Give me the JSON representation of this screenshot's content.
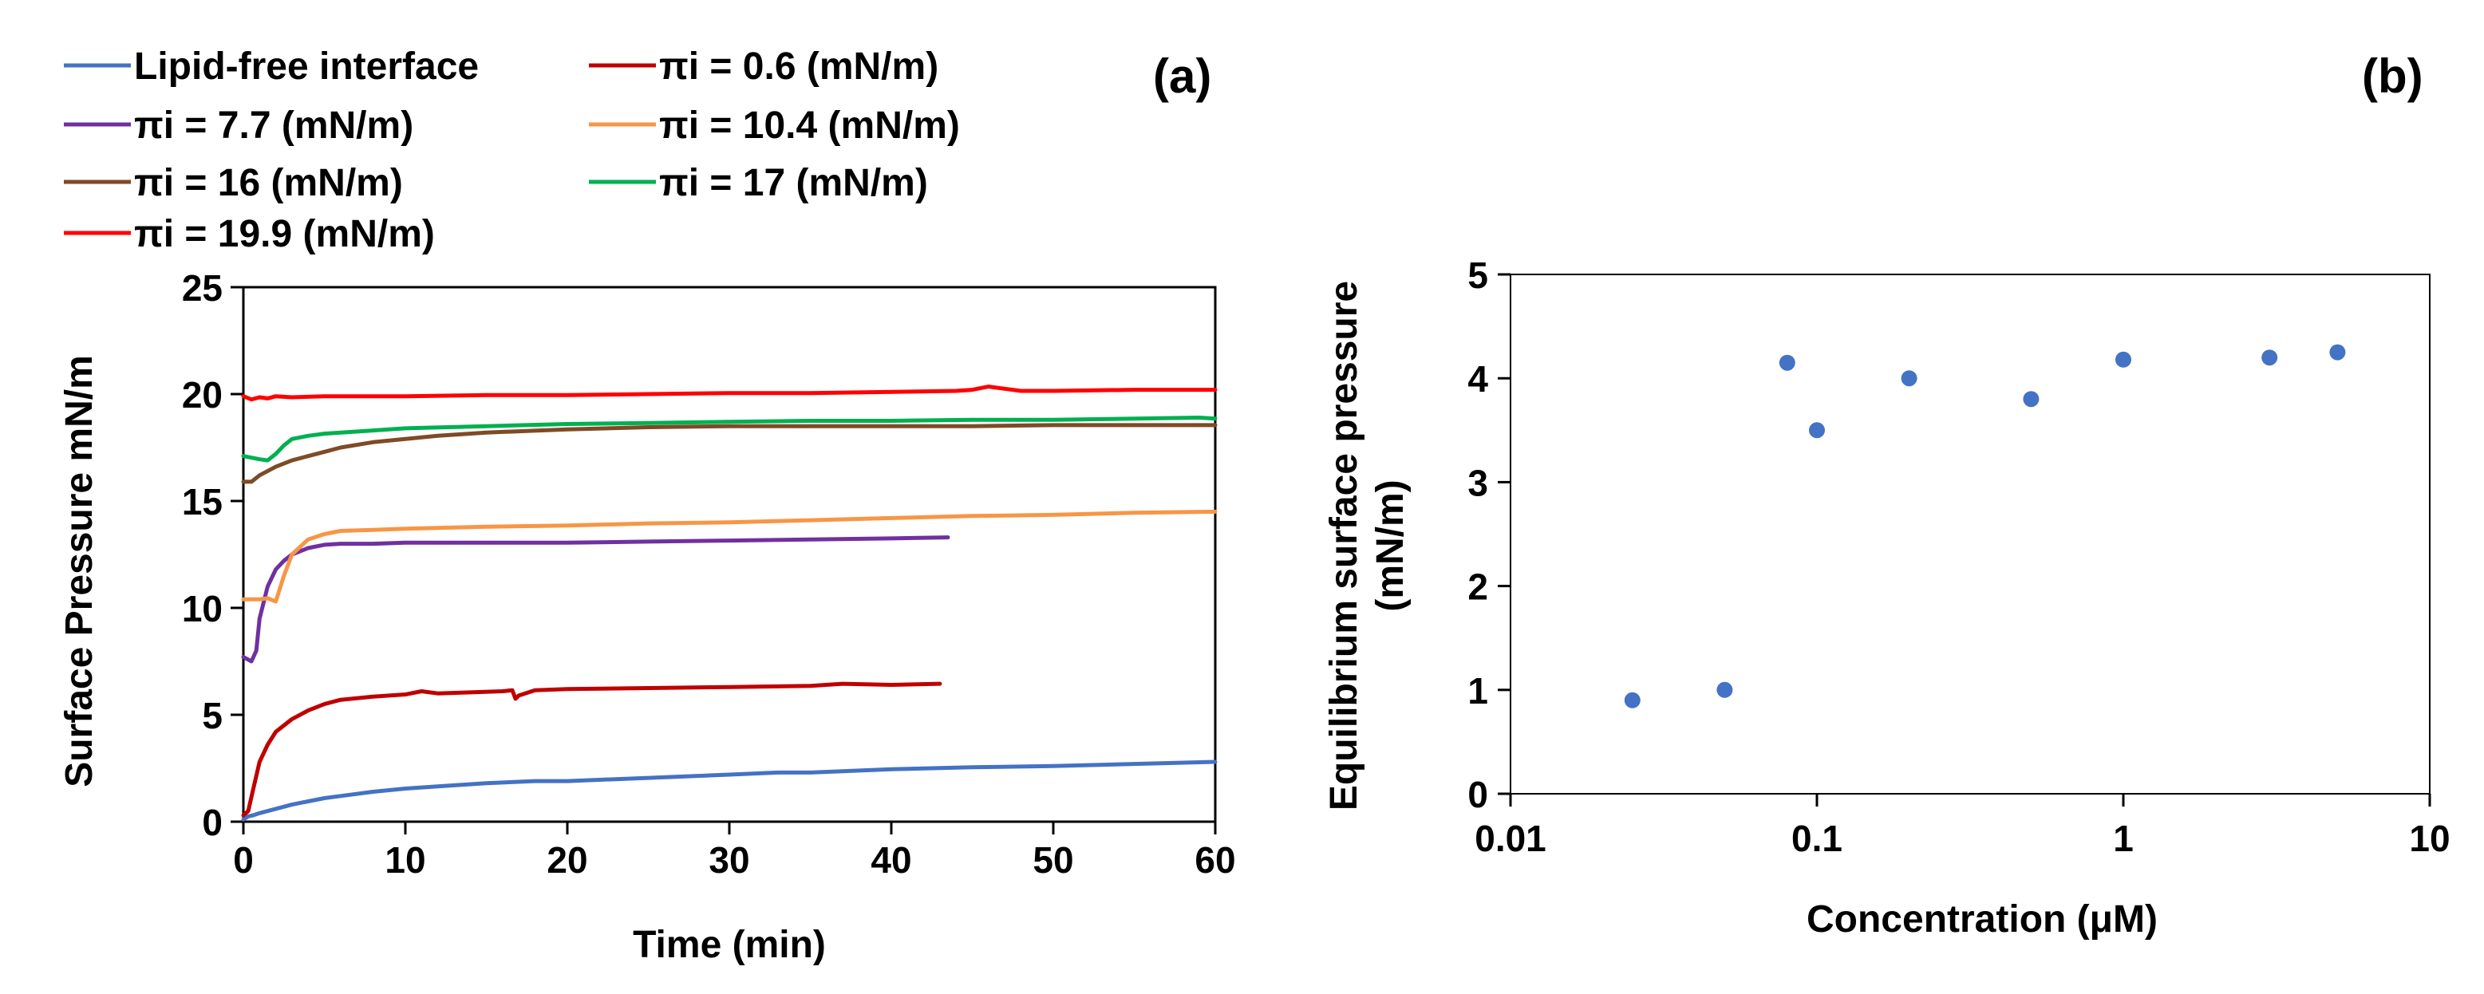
{
  "panels": {
    "a": {
      "label": "(a)"
    },
    "b": {
      "label": "(b)"
    }
  },
  "chart_data": [
    {
      "type": "line",
      "panel": "a",
      "xlabel": "Time (min)",
      "ylabel": "Surface Pressure mN/m",
      "xlim": [
        0,
        60
      ],
      "ylim": [
        0,
        25
      ],
      "xticks": [
        0,
        10,
        20,
        30,
        40,
        50,
        60
      ],
      "yticks": [
        0,
        5,
        10,
        15,
        20,
        25
      ],
      "legend_position": "top",
      "series": [
        {
          "name": "Lipid-free interface",
          "color": "#4472C4",
          "x": [
            0,
            0.3,
            0.6,
            1,
            2,
            3,
            4,
            5,
            6,
            8,
            10,
            12,
            15,
            18,
            20,
            25,
            30,
            33,
            35,
            40,
            45,
            50,
            55,
            60
          ],
          "y": [
            0.1,
            0.25,
            0.3,
            0.4,
            0.6,
            0.8,
            0.95,
            1.1,
            1.2,
            1.4,
            1.55,
            1.65,
            1.8,
            1.9,
            1.9,
            2.05,
            2.2,
            2.3,
            2.3,
            2.45,
            2.55,
            2.6,
            2.7,
            2.8
          ]
        },
        {
          "name": "πi = 0.6 (mN/m)",
          "color": "#C00000",
          "x": [
            0,
            0.3,
            0.6,
            1,
            1.5,
            2,
            3,
            4,
            5,
            6,
            8,
            10,
            11,
            12,
            14,
            16,
            16.6,
            16.8,
            17,
            18,
            20,
            25,
            30,
            35,
            37,
            40,
            43
          ],
          "y": [
            0.3,
            0.5,
            1.5,
            2.8,
            3.6,
            4.2,
            4.8,
            5.2,
            5.5,
            5.7,
            5.85,
            5.95,
            6.1,
            6.0,
            6.05,
            6.1,
            6.15,
            5.75,
            5.9,
            6.15,
            6.2,
            6.25,
            6.3,
            6.35,
            6.45,
            6.4,
            6.45
          ]
        },
        {
          "name": "πi = 7.7 (mN/m)",
          "color": "#7030A0",
          "x": [
            0,
            0.5,
            0.8,
            1,
            1.5,
            2,
            2.5,
            3,
            4,
            5,
            6,
            8,
            10,
            15,
            20,
            25,
            30,
            35,
            40,
            43.5
          ],
          "y": [
            7.7,
            7.5,
            8.0,
            9.5,
            11.0,
            11.8,
            12.2,
            12.5,
            12.8,
            12.95,
            13.0,
            13.0,
            13.05,
            13.05,
            13.05,
            13.1,
            13.15,
            13.2,
            13.25,
            13.3
          ]
        },
        {
          "name": "πi = 10.4 (mN/m)",
          "color": "#F79646",
          "x": [
            0,
            1,
            1.5,
            2,
            2.5,
            3,
            4,
            5,
            6,
            8,
            10,
            15,
            20,
            25,
            30,
            35,
            40,
            45,
            50,
            55,
            60
          ],
          "y": [
            10.4,
            10.4,
            10.45,
            10.3,
            11.5,
            12.5,
            13.2,
            13.45,
            13.6,
            13.65,
            13.7,
            13.8,
            13.85,
            13.95,
            14.0,
            14.1,
            14.2,
            14.3,
            14.35,
            14.45,
            14.5
          ]
        },
        {
          "name": "πi = 16 (mN/m)",
          "color": "#7F4A26",
          "x": [
            0,
            0.5,
            1,
            2,
            3,
            4,
            5,
            6,
            8,
            10,
            12,
            15,
            20,
            25,
            30,
            35,
            40,
            45,
            50,
            55,
            60
          ],
          "y": [
            15.9,
            15.9,
            16.2,
            16.6,
            16.9,
            17.1,
            17.3,
            17.5,
            17.75,
            17.9,
            18.05,
            18.2,
            18.35,
            18.45,
            18.5,
            18.5,
            18.5,
            18.5,
            18.55,
            18.55,
            18.55
          ]
        },
        {
          "name": "πi = 17 (mN/m)",
          "color": "#00B050",
          "x": [
            0,
            1,
            1.5,
            2,
            2.5,
            3,
            4,
            5,
            8,
            10,
            15,
            20,
            25,
            30,
            35,
            40,
            45,
            50,
            55,
            59,
            60
          ],
          "y": [
            17.1,
            16.95,
            16.9,
            17.2,
            17.6,
            17.9,
            18.05,
            18.15,
            18.3,
            18.4,
            18.5,
            18.6,
            18.65,
            18.7,
            18.75,
            18.75,
            18.8,
            18.8,
            18.85,
            18.9,
            18.85
          ]
        },
        {
          "name": "πi = 19.9 (mN/m)",
          "color": "#FF0000",
          "x": [
            0,
            0.5,
            1,
            1.5,
            2,
            3,
            5,
            10,
            15,
            20,
            25,
            30,
            35,
            40,
            44,
            45,
            46,
            47,
            48,
            50,
            55,
            60
          ],
          "y": [
            19.9,
            19.75,
            19.85,
            19.8,
            19.9,
            19.85,
            19.9,
            19.9,
            19.95,
            19.95,
            20.0,
            20.05,
            20.05,
            20.1,
            20.15,
            20.2,
            20.35,
            20.25,
            20.15,
            20.15,
            20.2,
            20.2
          ]
        }
      ]
    },
    {
      "type": "scatter",
      "panel": "b",
      "xlabel": "Concentration (μM)",
      "ylabel": "Equilibrium surface pressure (mN/m)",
      "ylabel_lines": [
        "Equilibrium surface pressure",
        "(mN/m)"
      ],
      "xscale": "log",
      "xlim": [
        0.01,
        10
      ],
      "ylim": [
        0,
        5
      ],
      "xticks": [
        0.01,
        0.1,
        1,
        10
      ],
      "xtick_labels": [
        "0.01",
        "0.1",
        "1",
        "10"
      ],
      "yticks": [
        0,
        1,
        2,
        3,
        4,
        5
      ],
      "color": "#4472C4",
      "x": [
        0.025,
        0.05,
        0.08,
        0.1,
        0.2,
        0.5,
        1,
        3,
        5
      ],
      "y": [
        0.9,
        1.0,
        4.15,
        3.5,
        4.0,
        3.8,
        4.18,
        4.2,
        4.25
      ]
    }
  ]
}
